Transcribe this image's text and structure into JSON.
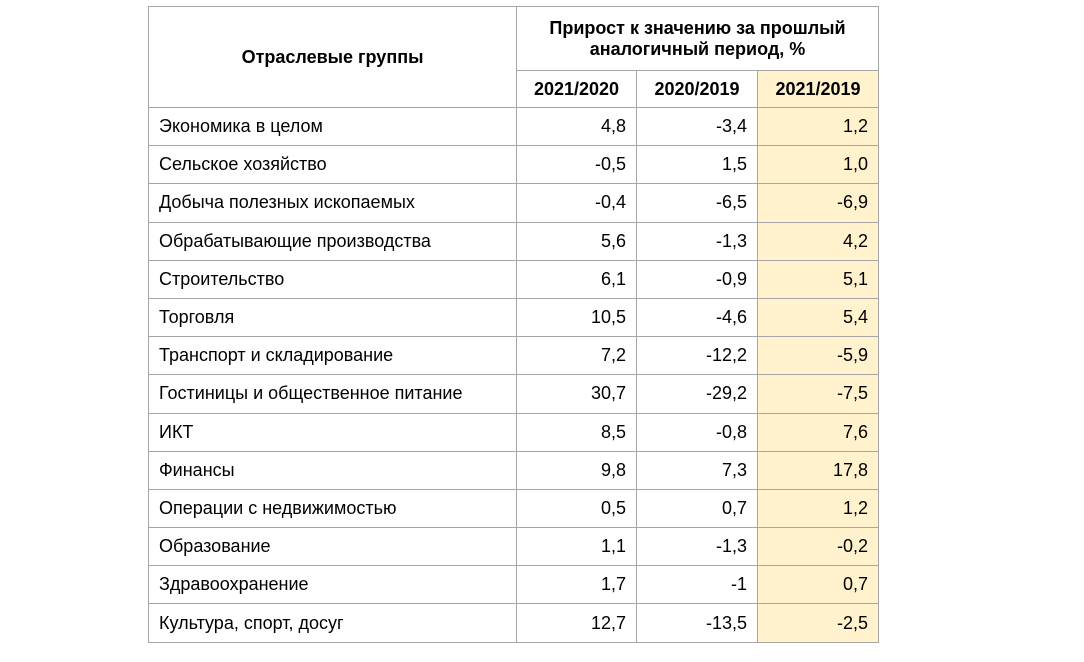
{
  "table": {
    "header": {
      "group": "Отраслевые группы",
      "growth": "Прирост к значению за прошлый аналогичный период, %",
      "periods": [
        "2021/2020",
        "2020/2019",
        "2021/2019"
      ]
    },
    "rows": [
      [
        "Экономика в целом",
        "4,8",
        "-3,4",
        "1,2"
      ],
      [
        "Сельское хозяйство",
        "-0,5",
        "1,5",
        "1,0"
      ],
      [
        "Добыча полезных ископаемых",
        "-0,4",
        "-6,5",
        "-6,9"
      ],
      [
        "Обрабатывающие производства",
        "5,6",
        "-1,3",
        "4,2"
      ],
      [
        "Строительство",
        "6,1",
        "-0,9",
        "5,1"
      ],
      [
        "Торговля",
        "10,5",
        "-4,6",
        "5,4"
      ],
      [
        "Транспорт и складирование",
        "7,2",
        "-12,2",
        "-5,9"
      ],
      [
        "Гостиницы и общественное питание",
        "30,7",
        "-29,2",
        "-7,5"
      ],
      [
        "ИКТ",
        "8,5",
        "-0,8",
        "7,6"
      ],
      [
        "Финансы",
        "9,8",
        "7,3",
        "17,8"
      ],
      [
        "Операции с недвижимостью",
        "0,5",
        "0,7",
        "1,2"
      ],
      [
        "Образование",
        "1,1",
        "-1,3",
        "-0,2"
      ],
      [
        "Здравоохранение",
        "1,7",
        "-1",
        "0,7"
      ],
      [
        "Культура, спорт, досуг",
        "12,7",
        "-13,5",
        "-2,5"
      ]
    ]
  }
}
